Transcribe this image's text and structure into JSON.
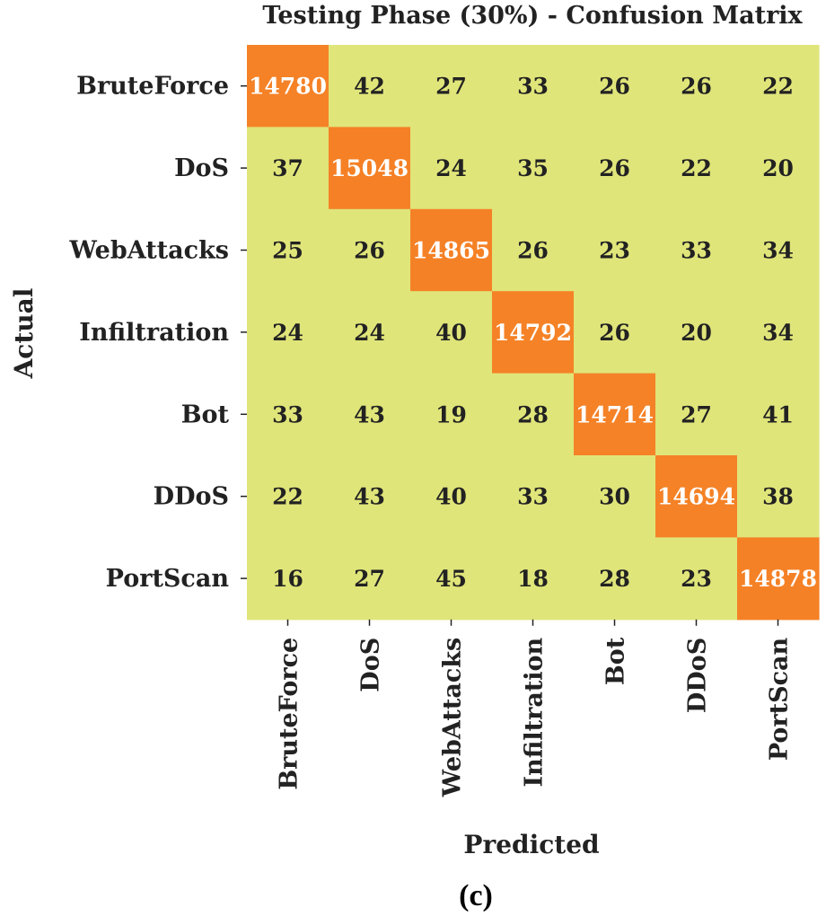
{
  "chart_data": {
    "type": "heatmap",
    "title": "Testing Phase (30%) - Confusion Matrix",
    "xlabel": "Predicted",
    "ylabel": "Actual",
    "x_categories": [
      "BruteForce",
      "DoS",
      "WebAttacks",
      "Infiltration",
      "Bot",
      "DDoS",
      "PortScan"
    ],
    "y_categories": [
      "BruteForce",
      "DoS",
      "WebAttacks",
      "Infiltration",
      "Bot",
      "DDoS",
      "PortScan"
    ],
    "values": [
      [
        14780,
        42,
        27,
        33,
        26,
        26,
        22
      ],
      [
        37,
        15048,
        24,
        35,
        26,
        22,
        20
      ],
      [
        25,
        26,
        14865,
        26,
        23,
        33,
        34
      ],
      [
        24,
        24,
        40,
        14792,
        26,
        20,
        34
      ],
      [
        33,
        43,
        19,
        28,
        14714,
        27,
        41
      ],
      [
        22,
        43,
        40,
        33,
        30,
        14694,
        38
      ],
      [
        16,
        27,
        45,
        18,
        28,
        23,
        14878
      ]
    ],
    "colors": {
      "low": "#e0e57a",
      "high": "#f58025",
      "text_low": "#222222",
      "text_high": "#ffffff"
    }
  },
  "caption": "(c)"
}
